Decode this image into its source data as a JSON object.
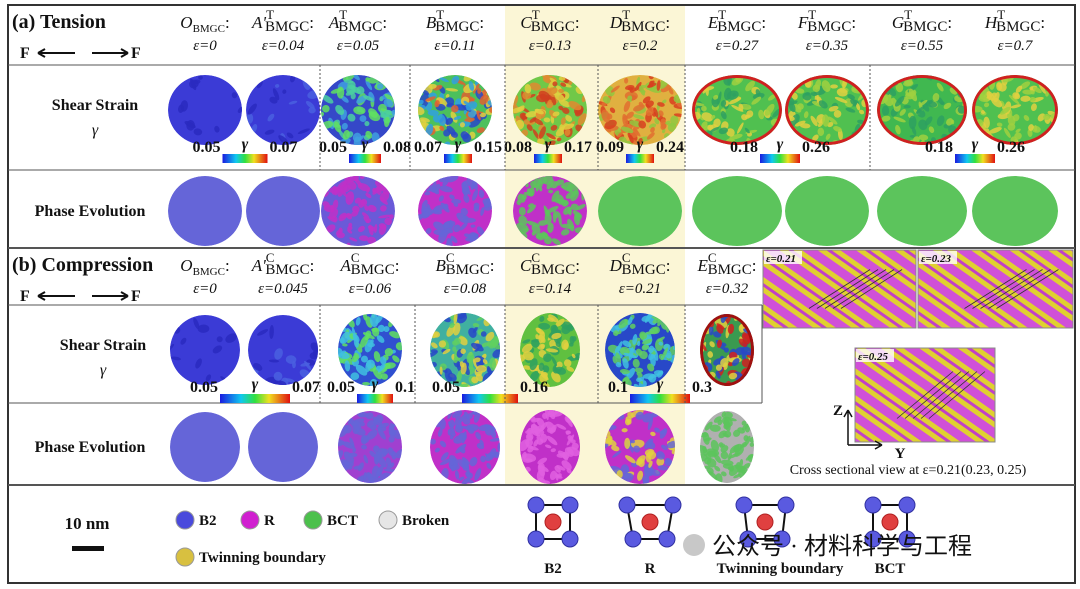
{
  "colon": ":",
  "tension": {
    "title": "(a) Tension",
    "force_left": "F",
    "force_right": "F",
    "shear_label": "Shear Strain",
    "shear_symbol": "γ",
    "phase_label": "Phase Evolution",
    "columns": [
      {
        "letter": "O",
        "sub": "BMGC",
        "strain": "ε=0"
      },
      {
        "letter": "A'",
        "sup": "T",
        "sub": "BMGC",
        "strain": "ε=0.04"
      },
      {
        "letter": "A",
        "sup": "T",
        "sub": "BMGC",
        "strain": "ε=0.05"
      },
      {
        "letter": "B",
        "sup": "T",
        "sub": "BMGC",
        "strain": "ε=0.11"
      },
      {
        "letter": "C",
        "sup": "T",
        "sub": "BMGC",
        "strain": "ε=0.13"
      },
      {
        "letter": "D",
        "sup": "T",
        "sub": "BMGC",
        "strain": "ε=0.2"
      },
      {
        "letter": "E",
        "sup": "T",
        "sub": "BMGC",
        "strain": "ε=0.27"
      },
      {
        "letter": "F",
        "sup": "T",
        "sub": "BMGC",
        "strain": "ε=0.35"
      },
      {
        "letter": "G",
        "sup": "T",
        "sub": "BMGC",
        "strain": "ε=0.55"
      },
      {
        "letter": "H",
        "sup": "T",
        "sub": "BMGC",
        "strain": "ε=0.7"
      }
    ],
    "colorbars": [
      {
        "min": 0.05,
        "symbol": "γ",
        "max": 0.07
      },
      {
        "min": 0.05,
        "symbol": "γ",
        "max": 0.08
      },
      {
        "min": 0.07,
        "symbol": "γ",
        "max": 0.15
      },
      {
        "min": 0.08,
        "symbol": "γ",
        "max": 0.17
      },
      {
        "min": 0.09,
        "symbol": "γ",
        "max": 0.24
      },
      {
        "min": 0.18,
        "symbol": "γ",
        "max": 0.26
      },
      {
        "min": 0.18,
        "symbol": "γ",
        "max": 0.26
      }
    ]
  },
  "compression": {
    "title": "(b) Compression",
    "force_left": "F",
    "force_right": "F",
    "shear_label": "Shear Strain",
    "shear_symbol": "γ",
    "phase_label": "Phase Evolution",
    "columns": [
      {
        "letter": "O",
        "sub": "BMGC",
        "strain": "ε=0"
      },
      {
        "letter": "A'",
        "sup": "C",
        "sub": "BMGC",
        "strain": "ε=0.045"
      },
      {
        "letter": "A",
        "sup": "C",
        "sub": "BMGC",
        "strain": "ε=0.06"
      },
      {
        "letter": "B",
        "sup": "C",
        "sub": "BMGC",
        "strain": "ε=0.08"
      },
      {
        "letter": "C",
        "sup": "C",
        "sub": "BMGC",
        "strain": "ε=0.14"
      },
      {
        "letter": "D",
        "sup": "C",
        "sub": "BMGC",
        "strain": "ε=0.21"
      },
      {
        "letter": "E",
        "sup": "C",
        "sub": "BMGC",
        "strain": "ε=0.32"
      }
    ],
    "colorbars": [
      {
        "min": 0.05,
        "symbol": "γ",
        "max": 0.07
      },
      {
        "min": 0.05,
        "symbol": "γ",
        "max": 0.1
      },
      {
        "min": 0.05,
        "max": 0.16
      },
      {
        "min": 0.1,
        "symbol": "γ",
        "max": 0.3
      }
    ]
  },
  "inset": {
    "labels": [
      "ε=0.21",
      "ε=0.23",
      "ε=0.25"
    ],
    "axis_z": "Z",
    "axis_y": "Y",
    "caption": "Cross sectional view at ε=0.21(0.23, 0.25)"
  },
  "legend": {
    "scale": "10 nm",
    "phases": [
      {
        "name": "B2",
        "color": "#4a4adc"
      },
      {
        "name": "R",
        "color": "#d020d0"
      },
      {
        "name": "BCT",
        "color": "#4cc04c"
      },
      {
        "name": "Broken",
        "color": "#e6e6e6"
      },
      {
        "name": "Twinning boundary",
        "color": "#d8c040"
      }
    ]
  },
  "structures": [
    "B2",
    "R",
    "Twinning boundary",
    "BCT"
  ],
  "watermark": "公众号 · 材料科学与工程"
}
